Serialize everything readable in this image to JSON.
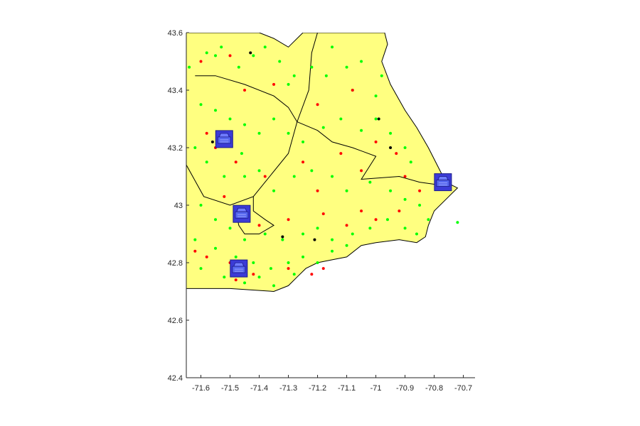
{
  "chart_data": {
    "type": "scatter",
    "xlim": [
      -71.65,
      -70.66
    ],
    "ylim": [
      42.4,
      43.6
    ],
    "x_ticks": [
      -71.6,
      -71.5,
      -71.4,
      -71.3,
      -71.2,
      -71.1,
      -71,
      -70.9,
      -70.8,
      -70.7
    ],
    "x_tick_labels": [
      "-71.6",
      "-71.5",
      "-71.4",
      "-71.3",
      "-71.2",
      "-71.1",
      "-71",
      "-70.9",
      "-70.8",
      "-70.7"
    ],
    "y_ticks": [
      42.4,
      42.6,
      42.8,
      43,
      43.2,
      43.4,
      43.6
    ],
    "y_tick_labels": [
      "42.4",
      "42.6",
      "42.8",
      "43",
      "43.2",
      "43.4",
      "43.6"
    ],
    "grid": false,
    "colors": {
      "land": "#ffff80",
      "county_border": "#000000",
      "point_green": "#00ff00",
      "point_red": "#ff0000",
      "point_black": "#000000",
      "marker_fill": "#3b3bd6",
      "marker_border": "#1c1c8a"
    },
    "region_outline": [
      [
        -71.65,
        43.6
      ],
      [
        -71.4,
        43.6
      ],
      [
        -71.35,
        43.58
      ],
      [
        -71.3,
        43.55
      ],
      [
        -71.25,
        43.6
      ],
      [
        -71.15,
        43.6
      ],
      [
        -70.97,
        43.6
      ],
      [
        -70.96,
        43.56
      ],
      [
        -70.98,
        43.5
      ],
      [
        -70.95,
        43.42
      ],
      [
        -70.9,
        43.33
      ],
      [
        -70.86,
        43.27
      ],
      [
        -70.82,
        43.2
      ],
      [
        -70.78,
        43.12
      ],
      [
        -70.76,
        43.08
      ],
      [
        -70.72,
        43.06
      ],
      [
        -70.75,
        43.03
      ],
      [
        -70.8,
        42.98
      ],
      [
        -70.82,
        42.93
      ],
      [
        -70.83,
        42.89
      ],
      [
        -70.86,
        42.87
      ],
      [
        -70.92,
        42.88
      ],
      [
        -71.0,
        42.87
      ],
      [
        -71.05,
        42.86
      ],
      [
        -71.1,
        42.82
      ],
      [
        -71.15,
        42.81
      ],
      [
        -71.2,
        42.8
      ],
      [
        -71.24,
        42.78
      ],
      [
        -71.27,
        42.75
      ],
      [
        -71.3,
        42.72
      ],
      [
        -71.35,
        42.7
      ],
      [
        -71.5,
        42.71
      ],
      [
        -71.65,
        42.71
      ]
    ],
    "county_borders": [
      [
        [
          -71.65,
          43.14
        ],
        [
          -71.59,
          43.03
        ],
        [
          -71.5,
          43.0
        ],
        [
          -71.42,
          43.03
        ],
        [
          -71.38,
          43.08
        ],
        [
          -71.3,
          43.18
        ],
        [
          -71.27,
          43.29
        ],
        [
          -71.23,
          43.4
        ],
        [
          -71.22,
          43.53
        ],
        [
          -71.2,
          43.6
        ]
      ],
      [
        [
          -71.62,
          43.45
        ],
        [
          -71.55,
          43.45
        ],
        [
          -71.45,
          43.42
        ],
        [
          -71.35,
          43.38
        ],
        [
          -71.3,
          43.34
        ],
        [
          -71.27,
          43.29
        ]
      ],
      [
        [
          -71.27,
          43.29
        ],
        [
          -71.2,
          43.26
        ],
        [
          -71.15,
          43.22
        ],
        [
          -71.08,
          43.2
        ],
        [
          -71.0,
          43.17
        ],
        [
          -71.05,
          43.09
        ],
        [
          -70.92,
          43.1
        ],
        [
          -70.85,
          43.08
        ],
        [
          -70.78,
          43.07
        ]
      ],
      [
        [
          -71.42,
          43.03
        ],
        [
          -71.42,
          42.98
        ],
        [
          -71.38,
          42.95
        ],
        [
          -71.35,
          42.93
        ],
        [
          -71.4,
          42.9
        ],
        [
          -71.45,
          42.9
        ],
        [
          -71.47,
          42.93
        ],
        [
          -71.48,
          42.98
        ]
      ]
    ],
    "points_green": [
      [
        -71.64,
        43.48
      ],
      [
        -71.58,
        43.53
      ],
      [
        -71.55,
        43.52
      ],
      [
        -71.53,
        43.55
      ],
      [
        -71.47,
        43.48
      ],
      [
        -71.42,
        43.52
      ],
      [
        -71.38,
        43.55
      ],
      [
        -71.33,
        43.5
      ],
      [
        -71.28,
        43.45
      ],
      [
        -71.22,
        43.48
      ],
      [
        -71.17,
        43.45
      ],
      [
        -71.15,
        43.55
      ],
      [
        -71.1,
        43.48
      ],
      [
        -71.05,
        43.5
      ],
      [
        -70.98,
        43.45
      ],
      [
        -71.6,
        43.35
      ],
      [
        -71.55,
        43.33
      ],
      [
        -71.5,
        43.3
      ],
      [
        -71.45,
        43.28
      ],
      [
        -71.4,
        43.25
      ],
      [
        -71.35,
        43.3
      ],
      [
        -71.3,
        43.25
      ],
      [
        -71.25,
        43.22
      ],
      [
        -71.18,
        43.27
      ],
      [
        -71.12,
        43.3
      ],
      [
        -71.05,
        43.26
      ],
      [
        -71.0,
        43.3
      ],
      [
        -70.95,
        43.25
      ],
      [
        -70.9,
        43.2
      ],
      [
        -70.88,
        43.15
      ],
      [
        -71.62,
        43.2
      ],
      [
        -71.58,
        43.15
      ],
      [
        -71.52,
        43.1
      ],
      [
        -71.45,
        43.1
      ],
      [
        -71.4,
        43.12
      ],
      [
        -71.35,
        43.05
      ],
      [
        -71.28,
        43.1
      ],
      [
        -71.22,
        43.12
      ],
      [
        -71.15,
        43.1
      ],
      [
        -71.1,
        43.05
      ],
      [
        -71.02,
        43.08
      ],
      [
        -70.95,
        43.05
      ],
      [
        -70.9,
        43.02
      ],
      [
        -70.85,
        43.0
      ],
      [
        -70.82,
        42.95
      ],
      [
        -71.6,
        43.0
      ],
      [
        -71.55,
        42.95
      ],
      [
        -71.5,
        42.92
      ],
      [
        -71.45,
        42.88
      ],
      [
        -71.38,
        42.9
      ],
      [
        -71.32,
        42.88
      ],
      [
        -71.25,
        42.9
      ],
      [
        -71.2,
        42.92
      ],
      [
        -71.15,
        42.88
      ],
      [
        -71.08,
        42.9
      ],
      [
        -71.02,
        42.92
      ],
      [
        -70.96,
        42.95
      ],
      [
        -70.9,
        42.92
      ],
      [
        -70.86,
        42.9
      ],
      [
        -71.62,
        42.88
      ],
      [
        -71.55,
        42.85
      ],
      [
        -71.48,
        42.82
      ],
      [
        -71.42,
        42.8
      ],
      [
        -71.36,
        42.78
      ],
      [
        -71.3,
        42.8
      ],
      [
        -71.25,
        42.82
      ],
      [
        -71.2,
        42.8
      ],
      [
        -71.15,
        42.84
      ],
      [
        -71.1,
        42.86
      ],
      [
        -71.6,
        42.78
      ],
      [
        -71.52,
        42.75
      ],
      [
        -71.45,
        42.73
      ],
      [
        -71.4,
        42.75
      ],
      [
        -71.35,
        42.72
      ],
      [
        -71.28,
        42.76
      ],
      [
        -70.72,
        42.94
      ],
      [
        -71.0,
        43.38
      ],
      [
        -71.08,
        43.4
      ],
      [
        -71.46,
        43.18
      ],
      [
        -71.3,
        43.42
      ]
    ],
    "points_red": [
      [
        -71.6,
        43.5
      ],
      [
        -71.5,
        43.52
      ],
      [
        -71.45,
        43.4
      ],
      [
        -71.35,
        43.42
      ],
      [
        -71.2,
        43.35
      ],
      [
        -71.08,
        43.4
      ],
      [
        -71.0,
        43.22
      ],
      [
        -70.93,
        43.18
      ],
      [
        -71.58,
        43.25
      ],
      [
        -71.55,
        43.2
      ],
      [
        -71.48,
        43.15
      ],
      [
        -71.38,
        43.1
      ],
      [
        -71.25,
        43.15
      ],
      [
        -71.12,
        43.18
      ],
      [
        -71.05,
        43.12
      ],
      [
        -70.9,
        43.1
      ],
      [
        -70.85,
        43.05
      ],
      [
        -71.52,
        43.03
      ],
      [
        -71.45,
        42.97
      ],
      [
        -71.4,
        42.93
      ],
      [
        -71.3,
        42.95
      ],
      [
        -71.18,
        42.97
      ],
      [
        -71.1,
        42.93
      ],
      [
        -70.92,
        42.98
      ],
      [
        -71.58,
        42.82
      ],
      [
        -71.5,
        42.8
      ],
      [
        -71.42,
        42.76
      ],
      [
        -71.3,
        42.78
      ],
      [
        -71.22,
        42.76
      ],
      [
        -71.18,
        42.78
      ],
      [
        -71.0,
        42.95
      ],
      [
        -71.48,
        42.74
      ],
      [
        -71.62,
        42.84
      ],
      [
        -71.2,
        43.05
      ],
      [
        -71.05,
        42.98
      ]
    ],
    "points_black": [
      [
        -71.43,
        43.53
      ],
      [
        -71.56,
        43.22
      ],
      [
        -70.99,
        43.3
      ],
      [
        -71.32,
        42.89
      ],
      [
        -71.21,
        42.88
      ],
      [
        -70.95,
        43.2
      ]
    ],
    "markers": [
      [
        -71.52,
        43.23
      ],
      [
        -71.46,
        42.97
      ],
      [
        -71.47,
        42.78
      ],
      [
        -70.77,
        43.08
      ]
    ]
  }
}
